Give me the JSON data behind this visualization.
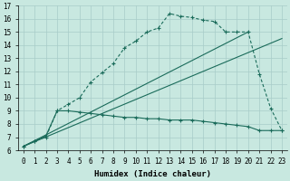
{
  "xlabel": "Humidex (Indice chaleur)",
  "bg_color": "#c8e8e0",
  "grid_color": "#a8ccc8",
  "line_color": "#1a6b5a",
  "xlim": [
    -0.5,
    23.5
  ],
  "ylim": [
    6,
    17
  ],
  "xticks": [
    0,
    1,
    2,
    3,
    4,
    5,
    6,
    7,
    8,
    9,
    10,
    11,
    12,
    13,
    14,
    15,
    16,
    17,
    18,
    19,
    20,
    21,
    22,
    23
  ],
  "yticks": [
    6,
    7,
    8,
    9,
    10,
    11,
    12,
    13,
    14,
    15,
    16,
    17
  ],
  "curve1_x": [
    0,
    1,
    2,
    3,
    4,
    5,
    6,
    7,
    8,
    9,
    10,
    11,
    12,
    13,
    14,
    15,
    16,
    17,
    18,
    19,
    20,
    21,
    22,
    23
  ],
  "curve1_y": [
    6.3,
    6.7,
    7.0,
    9.0,
    9.5,
    10.0,
    11.2,
    11.9,
    12.6,
    13.8,
    14.3,
    15.0,
    15.3,
    16.4,
    16.2,
    16.1,
    15.9,
    15.8,
    15.0,
    15.0,
    15.0,
    11.8,
    9.2,
    7.5
  ],
  "curve2_x": [
    0,
    1,
    2,
    3,
    4,
    5,
    6,
    7,
    8,
    9,
    10,
    11,
    12,
    13,
    14,
    15,
    16,
    17,
    18,
    19,
    20,
    21,
    22,
    23
  ],
  "curve2_y": [
    6.3,
    6.7,
    7.1,
    9.0,
    9.0,
    8.9,
    8.8,
    8.7,
    8.6,
    8.5,
    8.5,
    8.4,
    8.4,
    8.3,
    8.3,
    8.3,
    8.2,
    8.1,
    8.0,
    7.9,
    7.8,
    7.5,
    7.5,
    7.5
  ],
  "line1_x": [
    0,
    20
  ],
  "line1_y": [
    6.3,
    15.0
  ],
  "line2_x": [
    0,
    23
  ],
  "line2_y": [
    6.3,
    14.5
  ]
}
